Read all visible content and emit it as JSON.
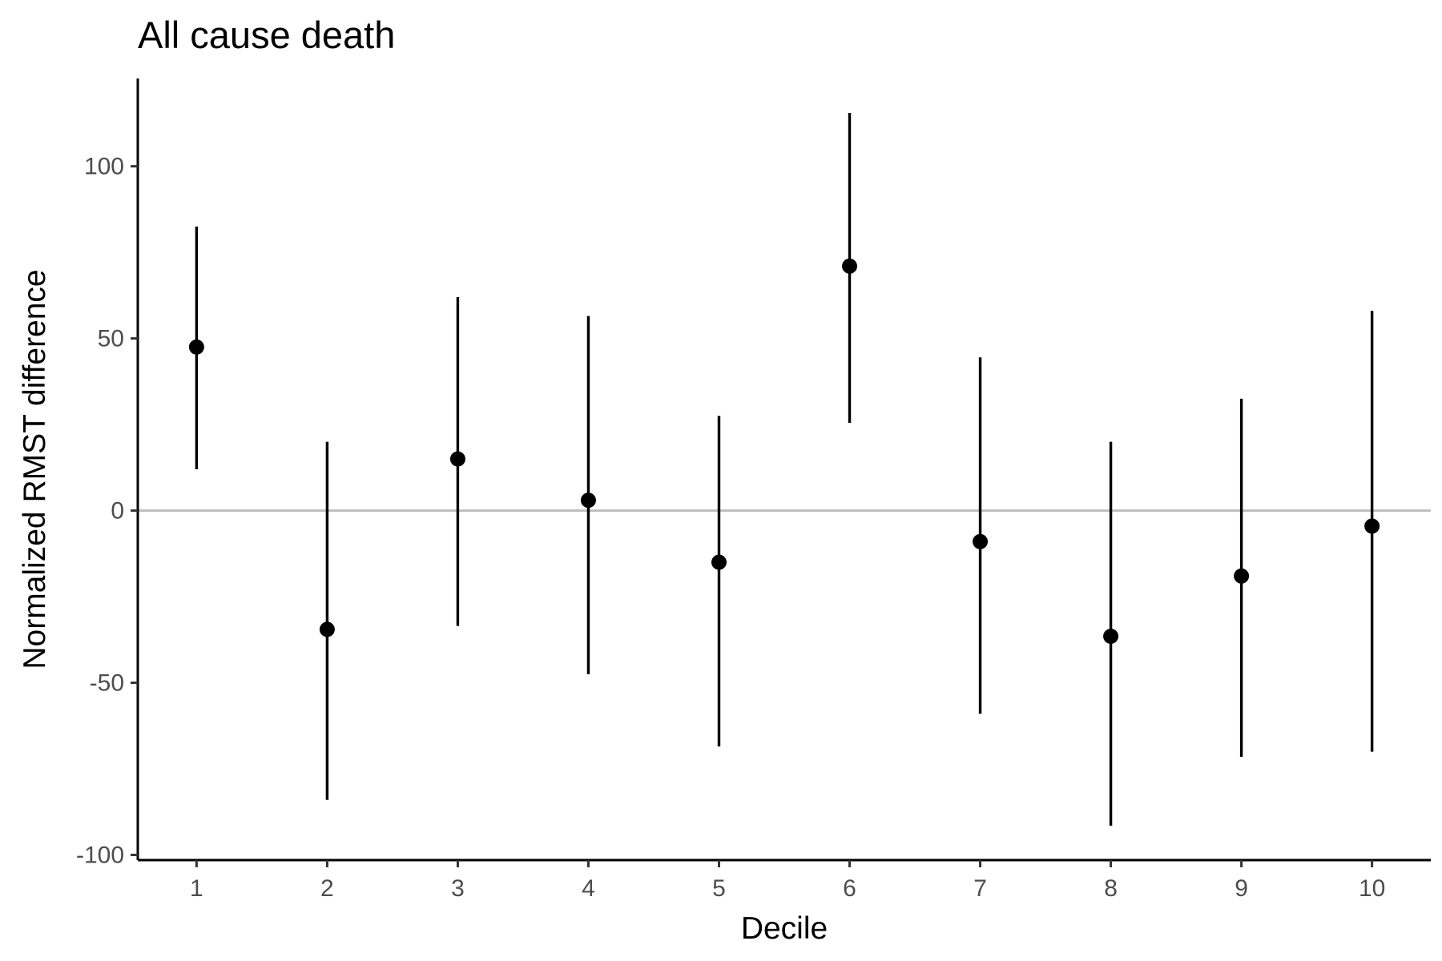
{
  "chart_data": {
    "type": "scatter",
    "title": "All cause death",
    "xlabel": "Decile",
    "ylabel": "Normalized RMST difference",
    "x": [
      1,
      2,
      3,
      4,
      5,
      6,
      7,
      8,
      9,
      10
    ],
    "y": [
      47.5,
      -34.5,
      15,
      3,
      -15,
      71,
      -9,
      -36.5,
      -19,
      -4.5
    ],
    "ci_lower": [
      12,
      -84,
      -33.5,
      -47.5,
      -68.5,
      25.5,
      -59,
      -91.5,
      -71.5,
      -70
    ],
    "ci_upper": [
      82.5,
      20,
      62,
      56.5,
      27.5,
      115.5,
      44.5,
      20,
      32.5,
      58
    ],
    "xticks": [
      "1",
      "2",
      "3",
      "4",
      "5",
      "6",
      "7",
      "8",
      "9",
      "10"
    ],
    "yticks": [
      "-100",
      "-50",
      "0",
      "50",
      "100"
    ],
    "xlim": [
      0.55,
      10.45
    ],
    "ylim": [
      -101.5,
      125.5
    ],
    "reference_line": 0,
    "grid": false,
    "legend": "none",
    "point_color": "#000000",
    "reference_line_color": "#bebebe"
  }
}
